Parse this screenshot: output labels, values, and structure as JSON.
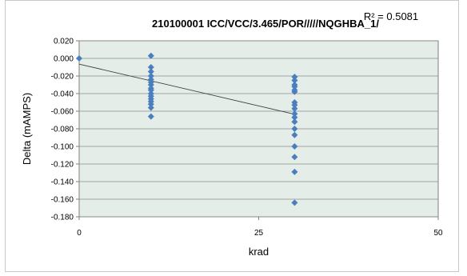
{
  "chart_data": {
    "type": "scatter",
    "title": "210100001  ICC/VCC/3.465/POR/////NQGHBA_1/",
    "xlabel": "krad",
    "ylabel": "Delta (mAMPS)",
    "xlim": [
      0,
      50
    ],
    "ylim": [
      -0.18,
      0.02
    ],
    "x_ticks": [
      0,
      25,
      50
    ],
    "x_tick_labels": [
      "0",
      "25",
      "50"
    ],
    "y_ticks": [
      0.02,
      0.0,
      -0.02,
      -0.04,
      -0.06,
      -0.08,
      -0.1,
      -0.12,
      -0.14,
      -0.16,
      -0.18
    ],
    "y_tick_labels": [
      "0.020",
      "0.000",
      "-0.020",
      "-0.040",
      "-0.060",
      "-0.080",
      "-0.100",
      "-0.120",
      "-0.140",
      "-0.160",
      "-0.180"
    ],
    "grid": "horizontal",
    "plot_background": "#e4ede8",
    "marker_color": "#4a7ebf",
    "trendline_color": "#404040",
    "r_squared_label": "R² = 0.5081",
    "trendline": {
      "x_start": 0,
      "y_start": -0.0065,
      "x_end": 30,
      "y_end": -0.0635
    },
    "series": [
      {
        "points": [
          [
            0,
            0.0
          ],
          [
            10,
            0.003
          ],
          [
            10,
            -0.01
          ],
          [
            10,
            -0.015
          ],
          [
            10,
            -0.02
          ],
          [
            10,
            -0.024
          ],
          [
            10,
            -0.027
          ],
          [
            10,
            -0.03
          ],
          [
            10,
            -0.034
          ],
          [
            10,
            -0.036
          ],
          [
            10,
            -0.04
          ],
          [
            10,
            -0.043
          ],
          [
            10,
            -0.046
          ],
          [
            10,
            -0.049
          ],
          [
            10,
            -0.052
          ],
          [
            10,
            -0.056
          ],
          [
            10,
            -0.066
          ],
          [
            30,
            -0.021
          ],
          [
            30,
            -0.025
          ],
          [
            30,
            -0.03
          ],
          [
            30,
            -0.032
          ],
          [
            30,
            -0.036
          ],
          [
            30,
            -0.038
          ],
          [
            30,
            -0.05
          ],
          [
            30,
            -0.053
          ],
          [
            30,
            -0.057
          ],
          [
            30,
            -0.063
          ],
          [
            30,
            -0.067
          ],
          [
            30,
            -0.072
          ],
          [
            30,
            -0.08
          ],
          [
            30,
            -0.087
          ],
          [
            30,
            -0.1
          ],
          [
            30,
            -0.112
          ],
          [
            30,
            -0.129
          ],
          [
            30,
            -0.164
          ]
        ]
      }
    ]
  }
}
